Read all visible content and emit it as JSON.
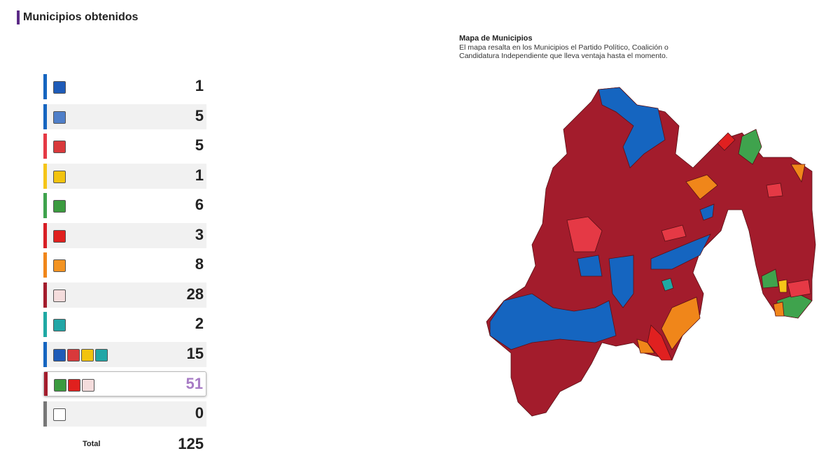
{
  "header": {
    "title": "Municipios obtenidos"
  },
  "table": {
    "rows": [
      {
        "count": 1,
        "color": "#1565c0",
        "icons": [
          "#1e5bb8"
        ]
      },
      {
        "count": 5,
        "color": "#1565c0",
        "icons": [
          "#4f7fc9"
        ]
      },
      {
        "count": 5,
        "color": "#e53945",
        "icons": [
          "#d9393b"
        ]
      },
      {
        "count": 1,
        "color": "#f5c518",
        "icons": [
          "#f2c30f"
        ]
      },
      {
        "count": 6,
        "color": "#3fa34d",
        "icons": [
          "#3b9b3f"
        ]
      },
      {
        "count": 3,
        "color": "#d81e25",
        "icons": [
          "#e0201e"
        ]
      },
      {
        "count": 8,
        "color": "#f0861a",
        "icons": [
          "#f39322"
        ]
      },
      {
        "count": 28,
        "color": "#a31c2c",
        "icons": [
          "#f4dcdc"
        ]
      },
      {
        "count": 2,
        "color": "#1fa9a4",
        "icons": [
          "#21a6a6"
        ]
      },
      {
        "count": 15,
        "color": "#1565c0",
        "icons": [
          "#1e5bb8",
          "#d9393b",
          "#f2c30f",
          "#21a6a6"
        ]
      },
      {
        "count": 51,
        "color": "#a31c2c",
        "count_color": "#a77bc5",
        "highlight": true,
        "icons": [
          "#3b9b3f",
          "#e0201e",
          "#f4dcdc"
        ]
      },
      {
        "count": 0,
        "color": "#777777",
        "icons": [
          "#ffffff"
        ]
      }
    ],
    "total_label": "Total",
    "total": 125
  },
  "map": {
    "title": "Mapa de Municipios",
    "description": "El mapa resalta en los Municipios el Partido Político, Coalición o Candidatura Independiente que lleva ventaja hasta el momento."
  }
}
